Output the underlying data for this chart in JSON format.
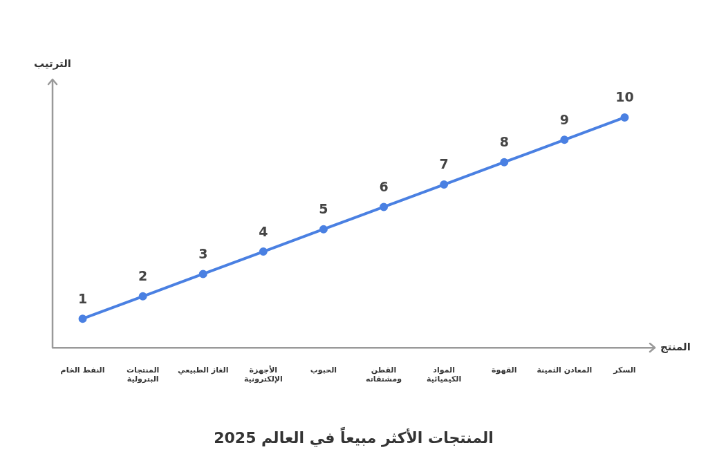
{
  "chart_data": {
    "type": "line",
    "title": "المنتجات الأكثر مبيعاً في العالم 2025",
    "xlabel": "المنتج",
    "ylabel": "الترتيب",
    "categories": [
      "النفط الخام",
      "المنتجات البترولية",
      "الغاز الطبيعي",
      "الأجهزة الإلكترونية",
      "الحبوب",
      "القطن ومشتقاته",
      "المواد الكيميائية",
      "القهوة",
      "المعادن الثمينة",
      "السكر"
    ],
    "values": [
      1,
      2,
      3,
      4,
      5,
      6,
      7,
      8,
      9,
      10
    ],
    "color": "#4a80e2",
    "ylim": [
      -0.3,
      11.7
    ],
    "data_labels": true,
    "grid": false,
    "legend": false,
    "marker": "circle",
    "line_style": "solid",
    "tick_labels": "x"
  }
}
